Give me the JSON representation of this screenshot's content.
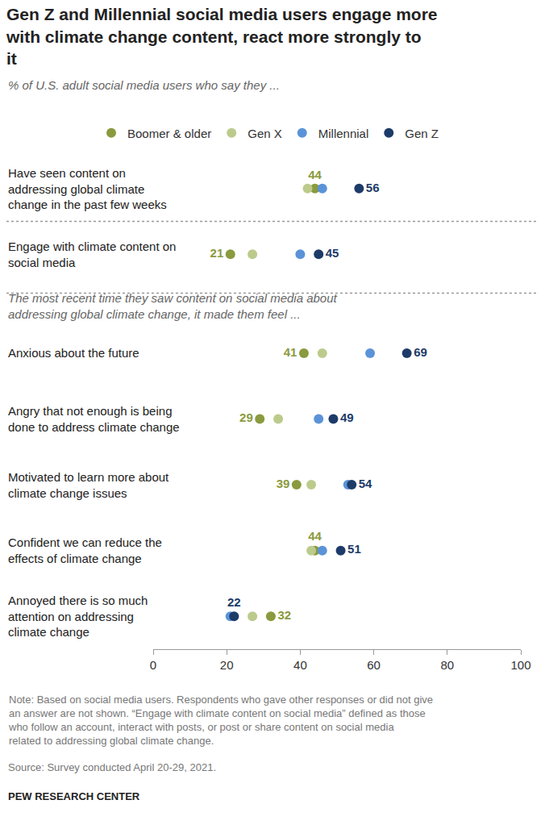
{
  "chart_data": {
    "type": "scatter",
    "title": "Gen Z and Millennial social media users engage more with climate change content, react more strongly to it",
    "subtitle": "% of U.S. adult social media users who say they ...",
    "categories": [
      "Have seen content on addressing global climate change in the past few weeks",
      "Engage with climate content on social media",
      "Anxious about the future",
      "Angry that not enough is being done to address climate change",
      "Motivated to learn more about climate change issues",
      "Confident we can reduce the effects of climate change",
      "Annoyed there is so much attention on addressing climate change"
    ],
    "series": [
      {
        "name": "Boomer & older",
        "color": "#8a9a3e",
        "values": [
          44,
          21,
          41,
          29,
          39,
          44,
          32
        ],
        "value_labels": [
          "44",
          "21",
          "41",
          "29",
          "39",
          "44",
          "32"
        ]
      },
      {
        "name": "Gen X",
        "color": "#bccb8c",
        "values": [
          42,
          27,
          46,
          34,
          43,
          43,
          27
        ]
      },
      {
        "name": "Millennial",
        "color": "#5b93d9",
        "values": [
          46,
          40,
          59,
          45,
          53,
          46,
          21
        ]
      },
      {
        "name": "Gen Z",
        "color": "#1d3b69",
        "values": [
          56,
          45,
          69,
          49,
          54,
          51,
          22
        ],
        "value_labels": [
          "56",
          "45",
          "69",
          "49",
          "54",
          "51",
          "22"
        ]
      }
    ],
    "xlim": [
      0,
      100
    ],
    "xticks": [
      0,
      20,
      40,
      60,
      80,
      100
    ],
    "grid": false,
    "legend": "top",
    "marker": "circle",
    "tick_labels": "x",
    "annotations": [
      {
        "text": "The most recent time they saw content on social media about addressing global climate change, it made them feel ...",
        "before_category": "Anxious about the future"
      }
    ],
    "note": "Note: Based on social media users. Respondents who gave other responses or did not give an answer are not shown. “Engage with climate content on social media” defined as those who follow an account, interact with posts, or post or share content on social media related to addressing global climate change.",
    "source": "Source: Survey conducted April 20-29, 2021.",
    "credit": "PEW RESEARCH CENTER"
  }
}
